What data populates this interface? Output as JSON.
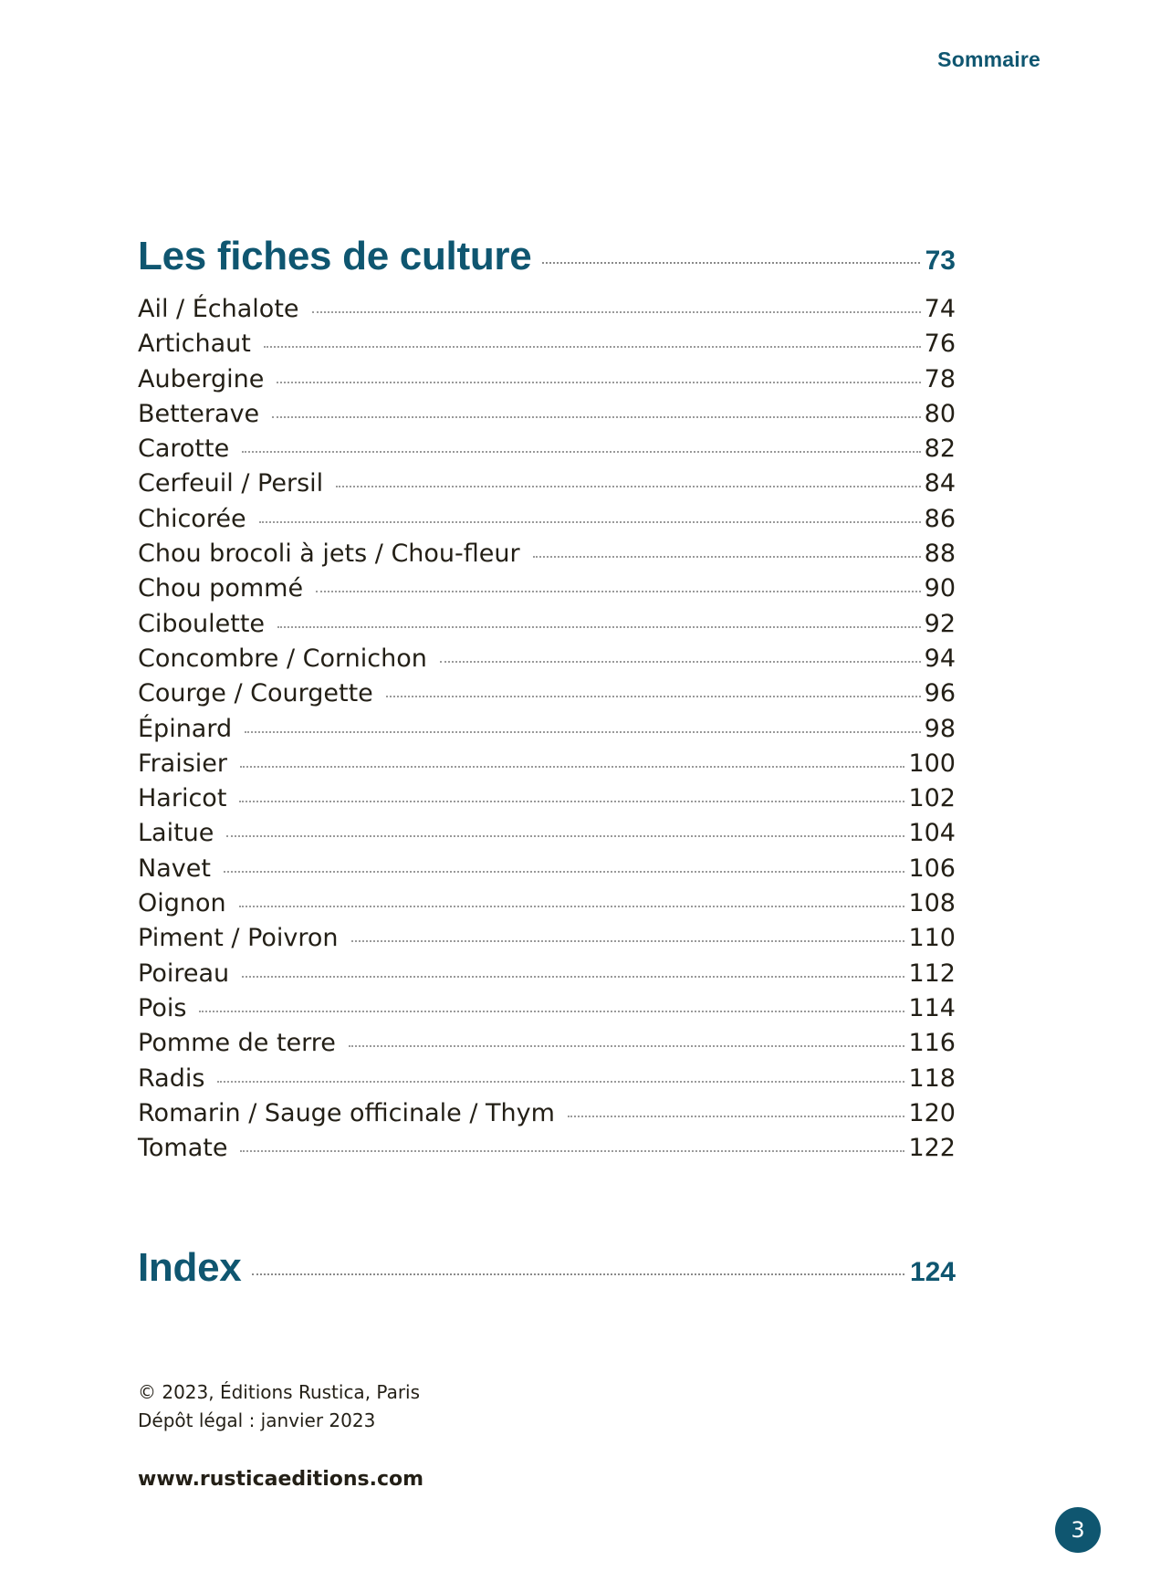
{
  "running_head": "Sommaire",
  "sections": {
    "culture": {
      "title": "Les fiches de culture",
      "page": "73"
    },
    "index": {
      "title": "Index",
      "page": "124"
    }
  },
  "entries": [
    {
      "label": "Ail / Échalote",
      "page": "74"
    },
    {
      "label": "Artichaut",
      "page": "76"
    },
    {
      "label": "Aubergine",
      "page": "78"
    },
    {
      "label": "Betterave",
      "page": "80"
    },
    {
      "label": "Carotte",
      "page": "82"
    },
    {
      "label": "Cerfeuil / Persil",
      "page": "84"
    },
    {
      "label": "Chicorée",
      "page": "86"
    },
    {
      "label": "Chou brocoli à jets / Chou-fleur",
      "page": "88"
    },
    {
      "label": "Chou pommé",
      "page": "90"
    },
    {
      "label": "Ciboulette",
      "page": "92"
    },
    {
      "label": "Concombre / Cornichon",
      "page": "94"
    },
    {
      "label": "Courge / Courgette",
      "page": "96"
    },
    {
      "label": "Épinard",
      "page": "98"
    },
    {
      "label": "Fraisier",
      "page": "100"
    },
    {
      "label": "Haricot",
      "page": "102"
    },
    {
      "label": "Laitue",
      "page": "104"
    },
    {
      "label": "Navet",
      "page": "106"
    },
    {
      "label": "Oignon",
      "page": "108"
    },
    {
      "label": "Piment / Poivron",
      "page": "110"
    },
    {
      "label": "Poireau",
      "page": "112"
    },
    {
      "label": "Pois",
      "page": "114"
    },
    {
      "label": "Pomme de terre",
      "page": "116"
    },
    {
      "label": "Radis",
      "page": "118"
    },
    {
      "label": "Romarin / Sauge officinale / Thym",
      "page": "120"
    },
    {
      "label": "Tomate",
      "page": "122"
    }
  ],
  "footer": {
    "copyright": "© 2023, Éditions Rustica, Paris",
    "legal_deposit": "Dépôt légal : janvier 2023",
    "website": "www.rusticaeditions.com"
  },
  "page_number": "3",
  "colors": {
    "accent": "#0f5670",
    "text": "#231f16"
  }
}
